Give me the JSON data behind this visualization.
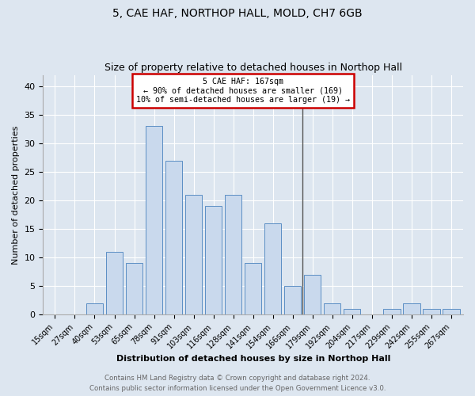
{
  "title1": "5, CAE HAF, NORTHOP HALL, MOLD, CH7 6GB",
  "title2": "Size of property relative to detached houses in Northop Hall",
  "xlabel": "Distribution of detached houses by size in Northop Hall",
  "ylabel": "Number of detached properties",
  "footnote1": "Contains HM Land Registry data © Crown copyright and database right 2024.",
  "footnote2": "Contains public sector information licensed under the Open Government Licence v3.0.",
  "bar_labels": [
    "15sqm",
    "27sqm",
    "40sqm",
    "53sqm",
    "65sqm",
    "78sqm",
    "91sqm",
    "103sqm",
    "116sqm",
    "128sqm",
    "141sqm",
    "154sqm",
    "166sqm",
    "179sqm",
    "192sqm",
    "204sqm",
    "217sqm",
    "229sqm",
    "242sqm",
    "255sqm",
    "267sqm"
  ],
  "bar_values": [
    0,
    0,
    2,
    11,
    9,
    33,
    27,
    21,
    19,
    21,
    9,
    16,
    5,
    7,
    2,
    1,
    0,
    1,
    2,
    1,
    1
  ],
  "bar_color": "#c9d9ed",
  "bar_edge_color": "#5b8ec4",
  "vline_x": 12.5,
  "vline_color": "#555555",
  "annotation_text": "5 CAE HAF: 167sqm\n← 90% of detached houses are smaller (169)\n10% of semi-detached houses are larger (19) →",
  "annotation_box_color": "#ffffff",
  "annotation_box_edge_color": "#cc0000",
  "ylim": [
    0,
    42
  ],
  "yticks": [
    0,
    5,
    10,
    15,
    20,
    25,
    30,
    35,
    40
  ],
  "fig_bg_color": "#dde6f0",
  "plot_bg_color": "#dde6f0",
  "grid_color": "#ffffff",
  "footnote_color": "#666666"
}
